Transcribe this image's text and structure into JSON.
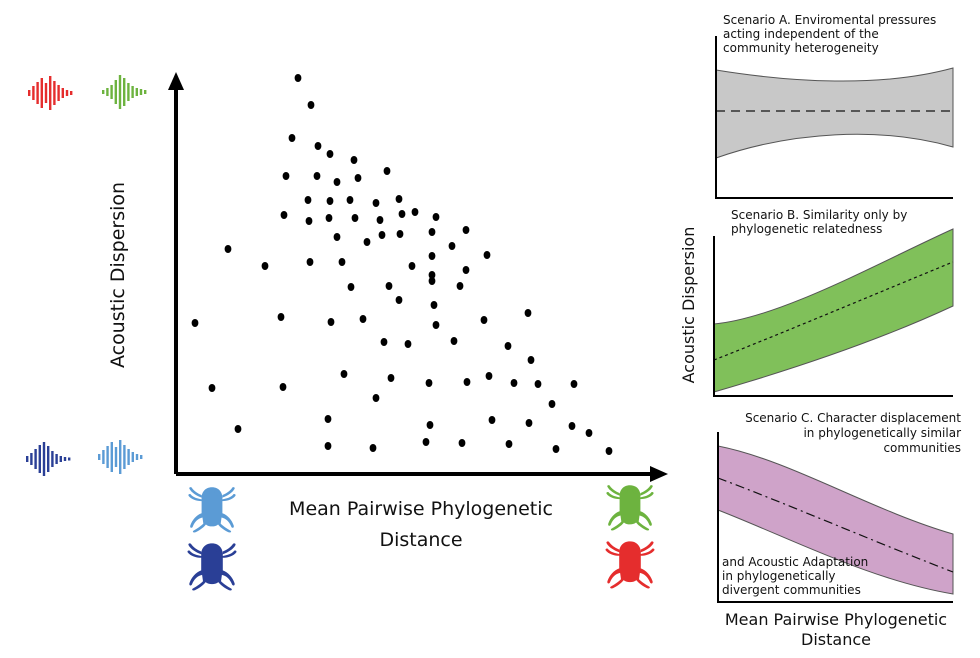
{
  "main_panel": {
    "ylabel": "Acoustic Dispersion",
    "xlabel_line1": "Mean Pairwise Phylogenetic",
    "xlabel_line2": "Distance"
  },
  "panels": {
    "a": {
      "lines": [
        "Scenario A. Enviromental pressures",
        "acting independent of the",
        "community heterogeneity"
      ]
    },
    "b": {
      "lines": [
        "Scenario B. Similarity only by",
        "phylogenetic relatedness"
      ]
    },
    "c": {
      "lines_top": [
        "Scenario C. Character displacement",
        "in phylogenetically similar",
        "communities"
      ],
      "lines_bottom": [
        "and Acoustic Adaptation",
        "in phylogenetically",
        "divergent communities"
      ]
    },
    "shared_ylabel": "Acoustic Dispersion",
    "shared_xlabel_line1": "Mean Pairwise Phylogenetic",
    "shared_xlabel_line2": "Distance"
  },
  "colors": {
    "red": "#e52d2d",
    "green": "#6db33f",
    "dark_blue": "#2a3f96",
    "light_blue": "#5b9bd5",
    "grey_band": "#c8c8c8",
    "green_band": "#80c05a",
    "purple_band": "#cfa3c9"
  },
  "icons": {
    "soundwaves": [
      "red-soundwave-icon",
      "green-soundwave-icon",
      "dark-blue-soundwave-icon",
      "light-blue-soundwave-icon"
    ],
    "frogs": [
      "light-blue-frog-icon",
      "dark-blue-frog-icon",
      "green-frog-icon",
      "red-frog-icon"
    ]
  }
}
